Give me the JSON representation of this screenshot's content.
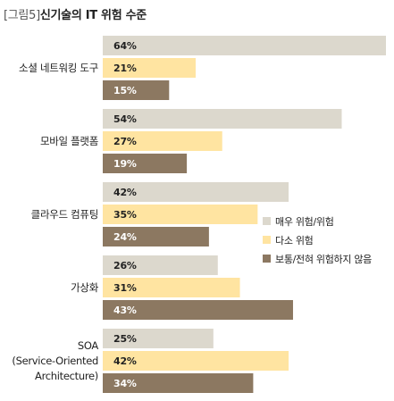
{
  "header": {
    "figure_label": "[그림5]",
    "title": "신기술의 IT 위험 수준"
  },
  "chart_data": {
    "type": "bar",
    "orientation": "horizontal",
    "title": "[그림5] 신기술의 IT 위험 수준",
    "categories": [
      [
        "소셜 네트워킹 도구"
      ],
      [
        "모바일 플랫폼"
      ],
      [
        "클라우드 컴퓨팅"
      ],
      [
        "가상화"
      ],
      [
        "SOA",
        "(Service-Oriented",
        "Architecture)"
      ]
    ],
    "series": [
      {
        "name": "매우 위험/위험",
        "values": [
          64,
          54,
          42,
          26,
          25
        ],
        "color": "#dcd8cd",
        "label_color": "#222222"
      },
      {
        "name": "다소 위험",
        "values": [
          21,
          27,
          35,
          31,
          42
        ],
        "color": "#ffe4a1",
        "label_color": "#222222"
      },
      {
        "name": "보통/전혀 위험하지 않음",
        "values": [
          15,
          19,
          24,
          43,
          34
        ],
        "color": "#8c7861",
        "label_color": "#ffffff"
      }
    ],
    "value_suffix": "%",
    "xlim": [
      0,
      64
    ],
    "grid": false,
    "legend_position": "right"
  }
}
